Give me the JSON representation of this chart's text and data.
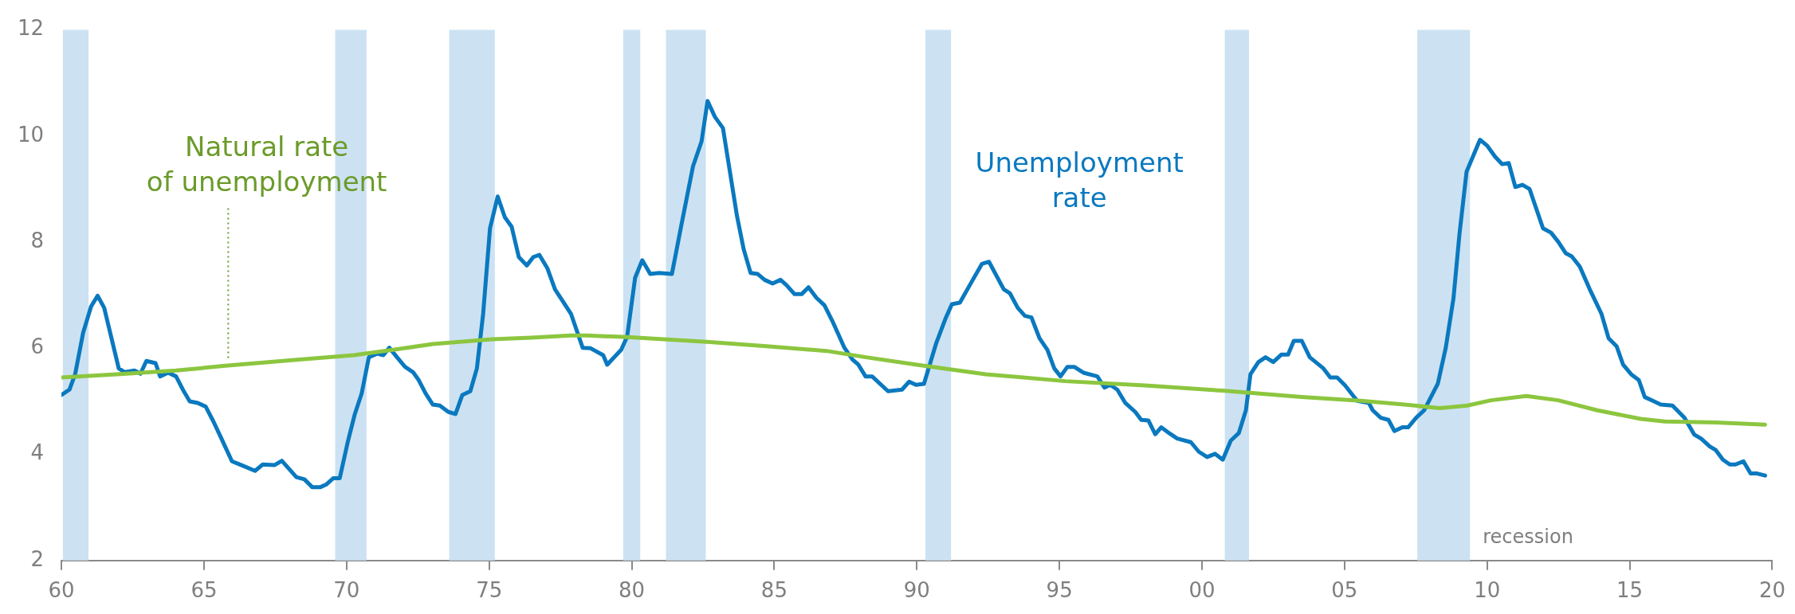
{
  "chart_data": {
    "type": "line",
    "xlim": [
      1960,
      2020
    ],
    "ylim": [
      2,
      12
    ],
    "xticks": [
      {
        "value": 1960,
        "label": "60"
      },
      {
        "value": 1965,
        "label": "65"
      },
      {
        "value": 1970,
        "label": "70"
      },
      {
        "value": 1975,
        "label": "75"
      },
      {
        "value": 1980,
        "label": "80"
      },
      {
        "value": 1985,
        "label": "85"
      },
      {
        "value": 1990,
        "label": "90"
      },
      {
        "value": 1995,
        "label": "95"
      },
      {
        "value": 2000,
        "label": "00"
      },
      {
        "value": 2005,
        "label": "05"
      },
      {
        "value": 2010,
        "label": "10"
      },
      {
        "value": 2015,
        "label": "15"
      },
      {
        "value": 2020,
        "label": "20"
      }
    ],
    "yticks": [
      2,
      4,
      6,
      8,
      10,
      12
    ],
    "grid": false,
    "legend": false,
    "marker": "none",
    "line_style": "solid",
    "bands": [
      {
        "axis": "x",
        "from": 1960.05,
        "to": 1960.95,
        "color": "#cce2f2"
      },
      {
        "axis": "x",
        "from": 1969.6,
        "to": 1970.7,
        "color": "#cce2f2"
      },
      {
        "axis": "x",
        "from": 1973.6,
        "to": 1975.2,
        "color": "#cce2f2"
      },
      {
        "axis": "x",
        "from": 1979.7,
        "to": 1980.3,
        "color": "#cce2f2"
      },
      {
        "axis": "x",
        "from": 1981.2,
        "to": 1982.6,
        "color": "#cce2f2"
      },
      {
        "axis": "x",
        "from": 1990.3,
        "to": 1991.2,
        "color": "#cce2f2"
      },
      {
        "axis": "x",
        "from": 2000.8,
        "to": 2001.65,
        "color": "#cce2f2"
      },
      {
        "axis": "x",
        "from": 2007.55,
        "to": 2009.4,
        "color": "#cce2f2",
        "label": "recession"
      }
    ],
    "series": [
      {
        "name": "Unemployment rate",
        "color": "#0a79bf",
        "x": [
          1960.0,
          1960.28,
          1960.48,
          1960.76,
          1961.04,
          1961.27,
          1961.5,
          1962.01,
          1962.22,
          1962.56,
          1962.77,
          1962.98,
          1963.3,
          1963.46,
          1963.74,
          1964.02,
          1964.29,
          1964.5,
          1964.78,
          1965.06,
          1965.33,
          1965.61,
          1965.98,
          1966.3,
          1966.79,
          1967.06,
          1967.48,
          1967.73,
          1967.96,
          1968.24,
          1968.52,
          1968.8,
          1969.07,
          1969.28,
          1969.53,
          1969.76,
          1970.04,
          1970.29,
          1970.53,
          1970.78,
          1971.08,
          1971.29,
          1971.5,
          1971.77,
          1972.05,
          1972.33,
          1972.53,
          1972.77,
          1973.02,
          1973.27,
          1973.57,
          1973.82,
          1974.06,
          1974.34,
          1974.57,
          1974.79,
          1975.03,
          1975.3,
          1975.55,
          1975.79,
          1976.04,
          1976.32,
          1976.55,
          1976.76,
          1977.04,
          1977.31,
          1977.59,
          1977.87,
          1978.28,
          1978.56,
          1979.0,
          1979.14,
          1979.63,
          1979.84,
          1980.12,
          1980.37,
          1980.65,
          1980.96,
          1981.41,
          1981.73,
          1982.15,
          1982.45,
          1982.66,
          1982.92,
          1983.2,
          1983.69,
          1983.93,
          1984.17,
          1984.42,
          1984.66,
          1984.94,
          1985.22,
          1985.43,
          1985.71,
          1985.96,
          1986.2,
          1986.48,
          1986.76,
          1987.04,
          1987.46,
          1987.74,
          1987.95,
          1988.2,
          1988.43,
          1988.99,
          1989.48,
          1989.73,
          1989.97,
          1990.25,
          1990.67,
          1991.02,
          1991.23,
          1991.51,
          1991.93,
          1992.28,
          1992.53,
          1993.05,
          1993.26,
          1993.54,
          1993.79,
          1994.02,
          1994.3,
          1994.58,
          1994.82,
          1995.04,
          1995.28,
          1995.52,
          1995.84,
          1996.33,
          1996.58,
          1996.78,
          1997.03,
          1997.31,
          1997.66,
          1997.87,
          1998.12,
          1998.36,
          1998.57,
          1998.85,
          1999.13,
          1999.61,
          1999.89,
          2000.18,
          2000.46,
          2000.73,
          2001.01,
          2001.29,
          2001.54,
          2001.7,
          2001.98,
          2002.23,
          2002.5,
          2002.78,
          2003.02,
          2003.22,
          2003.5,
          2003.78,
          2004.26,
          2004.5,
          2004.74,
          2005.02,
          2005.44,
          2005.85,
          2005.99,
          2006.27,
          2006.54,
          2006.75,
          2007.03,
          2007.23,
          2007.51,
          2007.79,
          2008.27,
          2008.55,
          2008.82,
          2009.03,
          2009.28,
          2009.75,
          2010.0,
          2010.28,
          2010.53,
          2010.76,
          2010.99,
          2011.24,
          2011.49,
          2011.96,
          2012.24,
          2012.49,
          2012.76,
          2012.97,
          2013.25,
          2013.6,
          2014.01,
          2014.26,
          2014.54,
          2014.77,
          2015.05,
          2015.32,
          2015.53,
          2015.81,
          2016.09,
          2016.5,
          2016.92,
          2017.27,
          2017.5,
          2017.81,
          2018.02,
          2018.27,
          2018.51,
          2018.71,
          2018.99,
          2019.24,
          2019.47,
          2019.75
        ],
        "values": [
          5.12,
          5.22,
          5.51,
          6.29,
          6.79,
          6.99,
          6.76,
          5.62,
          5.55,
          5.58,
          5.52,
          5.76,
          5.72,
          5.47,
          5.54,
          5.47,
          5.19,
          5.0,
          4.97,
          4.9,
          4.62,
          4.3,
          3.87,
          3.8,
          3.69,
          3.81,
          3.8,
          3.88,
          3.74,
          3.57,
          3.53,
          3.38,
          3.38,
          3.43,
          3.55,
          3.55,
          4.23,
          4.76,
          5.15,
          5.83,
          5.9,
          5.87,
          6.01,
          5.83,
          5.65,
          5.55,
          5.4,
          5.15,
          4.94,
          4.92,
          4.8,
          4.76,
          5.12,
          5.19,
          5.62,
          6.65,
          8.26,
          8.86,
          8.47,
          8.29,
          7.72,
          7.56,
          7.72,
          7.76,
          7.51,
          7.11,
          6.88,
          6.65,
          6.01,
          6.0,
          5.87,
          5.69,
          5.97,
          6.22,
          7.33,
          7.66,
          7.4,
          7.42,
          7.4,
          8.29,
          9.43,
          9.9,
          10.66,
          10.36,
          10.15,
          8.5,
          7.86,
          7.42,
          7.4,
          7.29,
          7.22,
          7.29,
          7.19,
          7.02,
          7.02,
          7.15,
          6.95,
          6.81,
          6.51,
          6.01,
          5.79,
          5.69,
          5.47,
          5.47,
          5.19,
          5.22,
          5.37,
          5.31,
          5.33,
          6.08,
          6.58,
          6.83,
          6.86,
          7.26,
          7.59,
          7.63,
          7.11,
          7.04,
          6.76,
          6.61,
          6.58,
          6.19,
          5.97,
          5.62,
          5.47,
          5.65,
          5.65,
          5.54,
          5.47,
          5.26,
          5.31,
          5.22,
          4.97,
          4.8,
          4.65,
          4.64,
          4.38,
          4.51,
          4.4,
          4.3,
          4.23,
          4.05,
          3.95,
          4.01,
          3.9,
          4.26,
          4.4,
          4.83,
          5.51,
          5.74,
          5.83,
          5.74,
          5.88,
          5.88,
          6.14,
          6.14,
          5.83,
          5.62,
          5.45,
          5.45,
          5.3,
          5.01,
          4.97,
          4.83,
          4.69,
          4.65,
          4.44,
          4.51,
          4.51,
          4.69,
          4.83,
          5.33,
          6.01,
          6.94,
          8.15,
          9.33,
          9.93,
          9.82,
          9.61,
          9.47,
          9.49,
          9.04,
          9.08,
          9.0,
          8.26,
          8.18,
          8.01,
          7.79,
          7.73,
          7.54,
          7.11,
          6.65,
          6.19,
          6.04,
          5.69,
          5.51,
          5.4,
          5.08,
          5.01,
          4.94,
          4.92,
          4.69,
          4.37,
          4.3,
          4.15,
          4.08,
          3.9,
          3.81,
          3.81,
          3.87,
          3.64,
          3.64,
          3.6
        ]
      },
      {
        "name": "Natural rate of unemployment",
        "color": "#8cc63f",
        "x": [
          1960.0,
          1961.94,
          1964.02,
          1965.75,
          1968.17,
          1970.25,
          1971.63,
          1973.02,
          1975.1,
          1976.48,
          1977.87,
          1978.44,
          1979.84,
          1982.64,
          1984.73,
          1986.83,
          1988.22,
          1990.0,
          1992.42,
          1995.21,
          1998.01,
          2000.73,
          2003.5,
          2005.57,
          2007.1,
          2008.34,
          2009.31,
          2010.14,
          2011.38,
          2012.49,
          2013.87,
          2015.39,
          2016.23,
          2018.02,
          2019.75
        ],
        "values": [
          5.45,
          5.51,
          5.58,
          5.67,
          5.78,
          5.87,
          5.97,
          6.08,
          6.17,
          6.2,
          6.24,
          6.24,
          6.21,
          6.12,
          6.04,
          5.95,
          5.83,
          5.69,
          5.51,
          5.38,
          5.3,
          5.2,
          5.08,
          5.01,
          4.94,
          4.87,
          4.92,
          5.02,
          5.1,
          5.02,
          4.83,
          4.67,
          4.62,
          4.6,
          4.56
        ]
      }
    ]
  }
}
